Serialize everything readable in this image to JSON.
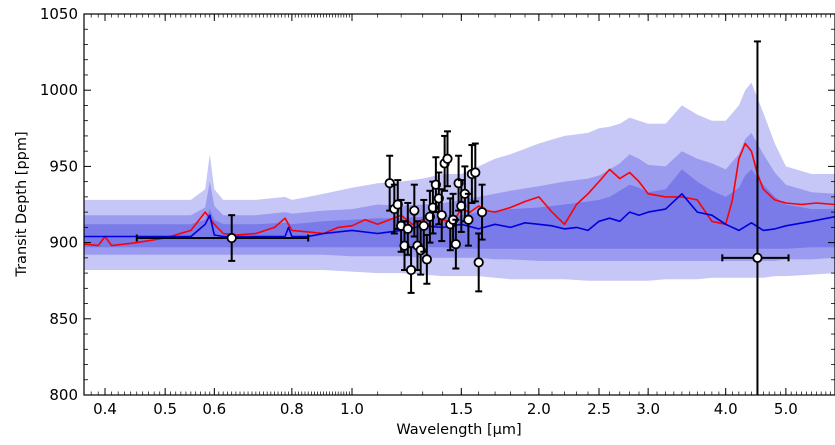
{
  "chart_data": {
    "type": "line",
    "xlabel": "Wavelength [µm]",
    "ylabel": "Transit Depth [ppm]",
    "xscale": "log",
    "xlim": [
      0.37,
      6.0
    ],
    "ylim": [
      800,
      1050
    ],
    "x_ticks": [
      0.4,
      0.5,
      0.6,
      0.8,
      1.0,
      1.5,
      2.0,
      2.5,
      3.0,
      4.0,
      5.0
    ],
    "x_tick_labels": [
      "0.4",
      "0.5",
      "0.6",
      "0.8",
      "1.0",
      "1.5",
      "2.0",
      "2.5",
      "3.0",
      "4.0",
      "5.0"
    ],
    "y_ticks": [
      800,
      850,
      900,
      950,
      1000,
      1050
    ],
    "y_tick_labels": [
      "800",
      "850",
      "900",
      "950",
      "1000",
      "1050"
    ],
    "colors": {
      "red_line": "#ff0000",
      "blue_line": "#0000dd",
      "band_outer": "#c6c6f7",
      "band_middle": "#9b9bef",
      "band_inner": "#7a7ae8",
      "points": "#000000"
    },
    "series": [
      {
        "x": [
          0.37,
          0.39,
          0.4,
          0.41,
          0.45,
          0.5,
          0.55,
          0.58,
          0.6,
          0.62,
          0.65,
          0.7,
          0.75,
          0.78,
          0.8,
          0.85,
          0.9,
          0.95,
          1.0,
          1.05,
          1.1,
          1.15,
          1.2,
          1.25,
          1.3,
          1.35,
          1.4,
          1.45,
          1.5,
          1.55,
          1.6,
          1.65,
          1.7,
          1.8,
          1.9,
          2.0,
          2.1,
          2.2,
          2.3,
          2.4,
          2.5,
          2.6,
          2.7,
          2.8,
          2.9,
          3.0,
          3.2,
          3.4,
          3.6,
          3.8,
          4.0,
          4.1,
          4.2,
          4.3,
          4.4,
          4.5,
          4.6,
          4.8,
          5.0,
          5.3,
          5.6,
          6.0
        ],
        "y": [
          899,
          898,
          904,
          898,
          900,
          903,
          908,
          920,
          912,
          906,
          905,
          906,
          910,
          916,
          908,
          907,
          906,
          910,
          911,
          915,
          912,
          915,
          918,
          912,
          915,
          910,
          915,
          913,
          922,
          920,
          924,
          921,
          920,
          923,
          927,
          930,
          920,
          912,
          925,
          932,
          940,
          948,
          942,
          946,
          940,
          932,
          930,
          930,
          928,
          914,
          912,
          928,
          955,
          965,
          960,
          945,
          935,
          928,
          926,
          925,
          926,
          925
        ]
      },
      {
        "x": [
          0.37,
          0.45,
          0.55,
          0.58,
          0.59,
          0.6,
          0.62,
          0.7,
          0.78,
          0.79,
          0.8,
          0.85,
          0.9,
          1.0,
          1.1,
          1.2,
          1.3,
          1.4,
          1.5,
          1.6,
          1.7,
          1.8,
          1.9,
          2.0,
          2.1,
          2.2,
          2.3,
          2.4,
          2.5,
          2.6,
          2.7,
          2.8,
          2.9,
          3.0,
          3.2,
          3.4,
          3.6,
          3.8,
          4.0,
          4.2,
          4.4,
          4.6,
          4.8,
          5.0,
          5.5,
          6.0
        ],
        "y": [
          904,
          904,
          904,
          912,
          918,
          905,
          904,
          904,
          904,
          910,
          904,
          904,
          906,
          908,
          906,
          908,
          911,
          910,
          912,
          909,
          912,
          910,
          913,
          912,
          911,
          909,
          910,
          908,
          914,
          916,
          914,
          920,
          918,
          920,
          922,
          932,
          920,
          918,
          912,
          908,
          913,
          908,
          909,
          911,
          914,
          917
        ]
      }
    ],
    "band_x": [
      0.37,
      0.45,
      0.55,
      0.58,
      0.59,
      0.6,
      0.62,
      0.7,
      0.78,
      0.8,
      0.85,
      0.9,
      1.0,
      1.1,
      1.2,
      1.3,
      1.4,
      1.5,
      1.6,
      1.7,
      1.8,
      2.0,
      2.2,
      2.4,
      2.5,
      2.6,
      2.7,
      2.8,
      2.9,
      3.0,
      3.2,
      3.4,
      3.6,
      3.8,
      4.0,
      4.2,
      4.3,
      4.4,
      4.6,
      4.8,
      5.0,
      5.5,
      6.0
    ],
    "band_outer_upper": [
      928,
      928,
      928,
      935,
      958,
      935,
      928,
      928,
      930,
      928,
      930,
      932,
      936,
      939,
      940,
      942,
      945,
      945,
      950,
      955,
      958,
      965,
      970,
      972,
      975,
      976,
      978,
      982,
      980,
      978,
      978,
      990,
      984,
      980,
      980,
      990,
      1000,
      1005,
      985,
      965,
      950,
      945,
      945
    ],
    "band_outer_lower": [
      882,
      882,
      882,
      882,
      882,
      882,
      882,
      882,
      882,
      882,
      882,
      882,
      881,
      880,
      880,
      879,
      878,
      878,
      878,
      877,
      876,
      876,
      876,
      875,
      875,
      875,
      875,
      875,
      875,
      875,
      876,
      876,
      876,
      877,
      877,
      877,
      877,
      877,
      877,
      878,
      878,
      879,
      880
    ],
    "band_middle_upper": [
      918,
      918,
      918,
      923,
      940,
      924,
      918,
      918,
      920,
      919,
      920,
      921,
      922,
      925,
      924,
      925,
      926,
      928,
      930,
      932,
      934,
      937,
      940,
      942,
      944,
      948,
      952,
      958,
      955,
      951,
      950,
      960,
      955,
      952,
      948,
      958,
      968,
      972,
      958,
      946,
      938,
      933,
      932
    ],
    "band_middle_lower": [
      892,
      892,
      892,
      892,
      892,
      892,
      892,
      892,
      892,
      892,
      892,
      892,
      891,
      891,
      891,
      890,
      890,
      890,
      890,
      889,
      889,
      888,
      888,
      888,
      888,
      888,
      888,
      888,
      888,
      888,
      888,
      888,
      888,
      888,
      888,
      888,
      888,
      888,
      888,
      888,
      889,
      889,
      890
    ],
    "band_inner_upper": [
      912,
      912,
      912,
      915,
      922,
      915,
      912,
      912,
      913,
      912,
      913,
      914,
      915,
      916,
      916,
      917,
      918,
      918,
      920,
      921,
      922,
      923,
      925,
      927,
      928,
      930,
      934,
      938,
      936,
      933,
      935,
      948,
      940,
      934,
      930,
      936,
      944,
      948,
      938,
      930,
      925,
      922,
      922
    ],
    "band_inner_lower": [
      897,
      897,
      897,
      897,
      897,
      897,
      897,
      897,
      897,
      897,
      897,
      897,
      897,
      897,
      897,
      897,
      897,
      896,
      896,
      896,
      896,
      896,
      896,
      896,
      896,
      896,
      896,
      896,
      896,
      896,
      896,
      896,
      896,
      896,
      896,
      896,
      896,
      896,
      896,
      896,
      896,
      897,
      897
    ],
    "points": [
      {
        "x": 0.64,
        "y": 903,
        "xerr_low": 0.19,
        "xerr_high": 0.21,
        "yerr": 15
      },
      {
        "x": 1.15,
        "y": 939,
        "xerr_low": 0,
        "xerr_high": 0,
        "yerr": 18
      },
      {
        "x": 1.17,
        "y": 922,
        "xerr_low": 0,
        "xerr_high": 0,
        "yerr": 16
      },
      {
        "x": 1.185,
        "y": 925,
        "xerr_low": 0,
        "xerr_high": 0,
        "yerr": 16
      },
      {
        "x": 1.2,
        "y": 911,
        "xerr_low": 0,
        "xerr_high": 0,
        "yerr": 17
      },
      {
        "x": 1.215,
        "y": 898,
        "xerr_low": 0,
        "xerr_high": 0,
        "yerr": 16
      },
      {
        "x": 1.23,
        "y": 909,
        "xerr_low": 0,
        "xerr_high": 0,
        "yerr": 17
      },
      {
        "x": 1.245,
        "y": 882,
        "xerr_low": 0,
        "xerr_high": 0,
        "yerr": 15
      },
      {
        "x": 1.26,
        "y": 921,
        "xerr_low": 0,
        "xerr_high": 0,
        "yerr": 17
      },
      {
        "x": 1.275,
        "y": 898,
        "xerr_low": 0,
        "xerr_high": 0,
        "yerr": 16
      },
      {
        "x": 1.29,
        "y": 895,
        "xerr_low": 0,
        "xerr_high": 0,
        "yerr": 16
      },
      {
        "x": 1.305,
        "y": 911,
        "xerr_low": 0,
        "xerr_high": 0,
        "yerr": 17
      },
      {
        "x": 1.32,
        "y": 889,
        "xerr_low": 0,
        "xerr_high": 0,
        "yerr": 16
      },
      {
        "x": 1.335,
        "y": 917,
        "xerr_low": 0,
        "xerr_high": 0,
        "yerr": 17
      },
      {
        "x": 1.35,
        "y": 923,
        "xerr_low": 0,
        "xerr_high": 0,
        "yerr": 17
      },
      {
        "x": 1.365,
        "y": 938,
        "xerr_low": 0,
        "xerr_high": 0,
        "yerr": 18
      },
      {
        "x": 1.38,
        "y": 929,
        "xerr_low": 0,
        "xerr_high": 0,
        "yerr": 17
      },
      {
        "x": 1.395,
        "y": 918,
        "xerr_low": 0,
        "xerr_high": 0,
        "yerr": 17
      },
      {
        "x": 1.41,
        "y": 952,
        "xerr_low": 0,
        "xerr_high": 0,
        "yerr": 18
      },
      {
        "x": 1.425,
        "y": 955,
        "xerr_low": 0,
        "xerr_high": 0,
        "yerr": 18
      },
      {
        "x": 1.44,
        "y": 912,
        "xerr_low": 0,
        "xerr_high": 0,
        "yerr": 17
      },
      {
        "x": 1.455,
        "y": 915,
        "xerr_low": 0,
        "xerr_high": 0,
        "yerr": 17
      },
      {
        "x": 1.47,
        "y": 899,
        "xerr_low": 0,
        "xerr_high": 0,
        "yerr": 16
      },
      {
        "x": 1.485,
        "y": 939,
        "xerr_low": 0,
        "xerr_high": 0,
        "yerr": 18
      },
      {
        "x": 1.5,
        "y": 924,
        "xerr_low": 0,
        "xerr_high": 0,
        "yerr": 17
      },
      {
        "x": 1.52,
        "y": 932,
        "xerr_low": 0,
        "xerr_high": 0,
        "yerr": 18
      },
      {
        "x": 1.54,
        "y": 915,
        "xerr_low": 0,
        "xerr_high": 0,
        "yerr": 17
      },
      {
        "x": 1.56,
        "y": 945,
        "xerr_low": 0,
        "xerr_high": 0,
        "yerr": 19
      },
      {
        "x": 1.58,
        "y": 946,
        "xerr_low": 0,
        "xerr_high": 0,
        "yerr": 19
      },
      {
        "x": 1.6,
        "y": 887,
        "xerr_low": 0,
        "xerr_high": 0,
        "yerr": 19
      },
      {
        "x": 1.62,
        "y": 920,
        "xerr_low": 0,
        "xerr_high": 0,
        "yerr": 18
      },
      {
        "x": 4.5,
        "y": 890,
        "xerr_low": 0.55,
        "xerr_high": 0.55,
        "yerr": 142
      }
    ]
  }
}
